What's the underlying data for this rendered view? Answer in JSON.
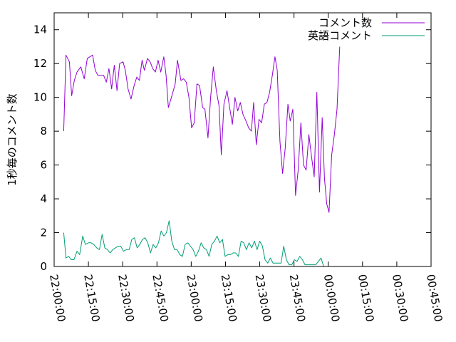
{
  "chart_data": {
    "type": "line",
    "ylabel": "1秒毎のコメント数",
    "xlabel": "",
    "ylim": [
      0,
      15
    ],
    "yticks": [
      0,
      2,
      4,
      6,
      8,
      10,
      12,
      14
    ],
    "xlim": [
      "22:00:00",
      "00:45:00"
    ],
    "xticks": [
      "22:00:00",
      "22:15:00",
      "22:30:00",
      "22:45:00",
      "23:00:00",
      "23:15:00",
      "23:30:00",
      "23:45:00",
      "00:00:00",
      "00:15:00",
      "00:30:00",
      "00:45:00"
    ],
    "grid": false,
    "legend_position": "top-right",
    "series": [
      {
        "name": "コメント数",
        "color": "#9400d3",
        "points": [
          [
            "22:04:10",
            8.0
          ],
          [
            "22:05:10",
            12.5
          ],
          [
            "22:06:40",
            12.1
          ],
          [
            "22:07:40",
            10.1
          ],
          [
            "22:08:50",
            11.0
          ],
          [
            "22:10:00",
            11.5
          ],
          [
            "22:11:40",
            11.8
          ],
          [
            "22:13:10",
            11.1
          ],
          [
            "22:14:30",
            12.3
          ],
          [
            "22:15:40",
            12.4
          ],
          [
            "22:16:50",
            12.5
          ],
          [
            "22:18:00",
            11.6
          ],
          [
            "22:19:10",
            11.3
          ],
          [
            "22:20:30",
            11.3
          ],
          [
            "22:21:40",
            11.3
          ],
          [
            "22:22:50",
            10.9
          ],
          [
            "22:24:00",
            11.7
          ],
          [
            "22:25:10",
            10.5
          ],
          [
            "22:26:20",
            11.9
          ],
          [
            "22:27:30",
            10.4
          ],
          [
            "22:28:40",
            12.0
          ],
          [
            "22:30:10",
            12.1
          ],
          [
            "22:31:10",
            11.6
          ],
          [
            "22:32:20",
            10.5
          ],
          [
            "22:33:40",
            9.9
          ],
          [
            "22:35:00",
            10.7
          ],
          [
            "22:36:10",
            11.2
          ],
          [
            "22:37:20",
            11.0
          ],
          [
            "22:38:30",
            12.2
          ],
          [
            "22:39:30",
            11.6
          ],
          [
            "22:40:50",
            12.3
          ],
          [
            "22:42:00",
            12.1
          ],
          [
            "22:43:10",
            11.7
          ],
          [
            "22:44:20",
            11.5
          ],
          [
            "22:45:30",
            12.2
          ],
          [
            "22:46:40",
            11.5
          ],
          [
            "22:48:00",
            12.4
          ],
          [
            "22:49:00",
            11.3
          ],
          [
            "22:50:00",
            9.4
          ],
          [
            "22:51:20",
            10.0
          ],
          [
            "22:53:00",
            10.8
          ],
          [
            "22:54:00",
            12.2
          ],
          [
            "22:55:30",
            11.0
          ],
          [
            "22:56:40",
            11.1
          ],
          [
            "22:57:50",
            10.9
          ],
          [
            "22:59:00",
            10.0
          ],
          [
            "23:00:10",
            8.2
          ],
          [
            "23:01:20",
            8.5
          ],
          [
            "23:02:30",
            10.8
          ],
          [
            "23:03:40",
            10.7
          ],
          [
            "23:05:00",
            9.4
          ],
          [
            "23:06:00",
            9.3
          ],
          [
            "23:07:20",
            7.6
          ],
          [
            "23:08:30",
            10.0
          ],
          [
            "23:09:40",
            11.8
          ],
          [
            "23:11:00",
            10.4
          ],
          [
            "23:12:10",
            9.5
          ],
          [
            "23:13:10",
            6.6
          ],
          [
            "23:14:20",
            9.6
          ],
          [
            "23:15:40",
            10.4
          ],
          [
            "23:16:50",
            9.4
          ],
          [
            "23:18:00",
            8.4
          ],
          [
            "23:19:10",
            10.0
          ],
          [
            "23:20:20",
            9.2
          ],
          [
            "23:21:30",
            9.7
          ],
          [
            "23:22:40",
            9.0
          ],
          [
            "23:24:00",
            8.6
          ],
          [
            "23:25:10",
            8.2
          ],
          [
            "23:26:20",
            8.0
          ],
          [
            "23:27:20",
            9.7
          ],
          [
            "23:28:30",
            7.2
          ],
          [
            "23:29:40",
            8.7
          ],
          [
            "23:30:50",
            8.5
          ],
          [
            "23:32:00",
            9.6
          ],
          [
            "23:33:10",
            9.7
          ],
          [
            "23:34:20",
            10.3
          ],
          [
            "23:35:30",
            11.3
          ],
          [
            "23:36:40",
            12.4
          ],
          [
            "23:37:40",
            11.6
          ],
          [
            "23:38:50",
            7.4
          ],
          [
            "23:40:00",
            5.5
          ],
          [
            "23:41:10",
            7.0
          ],
          [
            "23:42:20",
            9.6
          ],
          [
            "23:43:20",
            8.6
          ],
          [
            "23:44:30",
            9.3
          ],
          [
            "23:45:40",
            4.2
          ],
          [
            "23:46:50",
            5.7
          ],
          [
            "23:48:00",
            8.5
          ],
          [
            "23:49:10",
            6.0
          ],
          [
            "23:50:20",
            5.7
          ],
          [
            "23:51:30",
            7.8
          ],
          [
            "23:52:40",
            6.5
          ],
          [
            "23:53:50",
            5.3
          ],
          [
            "23:55:00",
            10.3
          ],
          [
            "23:56:10",
            4.4
          ],
          [
            "23:57:20",
            8.8
          ],
          [
            "23:58:20",
            5.2
          ],
          [
            "23:59:20",
            3.7
          ],
          [
            "00:00:20",
            3.2
          ],
          [
            "00:01:30",
            6.6
          ],
          [
            "00:02:40",
            7.8
          ],
          [
            "00:03:50",
            9.3
          ],
          [
            "00:05:00",
            13.0
          ]
        ]
      },
      {
        "name": "英語コメント",
        "color": "#009e73",
        "points": [
          [
            "22:04:10",
            2.0
          ],
          [
            "22:05:10",
            0.5
          ],
          [
            "22:06:20",
            0.6
          ],
          [
            "22:07:30",
            0.4
          ],
          [
            "22:08:40",
            0.4
          ],
          [
            "22:10:00",
            0.9
          ],
          [
            "22:11:10",
            0.7
          ],
          [
            "22:12:30",
            1.8
          ],
          [
            "22:13:40",
            1.3
          ],
          [
            "22:15:00",
            1.4
          ],
          [
            "22:16:10",
            1.4
          ],
          [
            "22:17:20",
            1.3
          ],
          [
            "22:18:40",
            1.1
          ],
          [
            "22:19:50",
            1.0
          ],
          [
            "22:21:00",
            1.9
          ],
          [
            "22:22:10",
            1.1
          ],
          [
            "22:23:20",
            1.0
          ],
          [
            "22:24:30",
            0.8
          ],
          [
            "22:25:40",
            1.0
          ],
          [
            "22:26:50",
            1.1
          ],
          [
            "22:28:00",
            1.2
          ],
          [
            "22:29:10",
            1.2
          ],
          [
            "22:30:20",
            0.9
          ],
          [
            "22:31:40",
            1.0
          ],
          [
            "22:32:50",
            1.0
          ],
          [
            "22:34:00",
            1.6
          ],
          [
            "22:35:10",
            1.7
          ],
          [
            "22:36:20",
            1.1
          ],
          [
            "22:37:30",
            1.3
          ],
          [
            "22:38:40",
            1.6
          ],
          [
            "22:39:50",
            1.7
          ],
          [
            "22:41:00",
            1.4
          ],
          [
            "22:42:10",
            0.8
          ],
          [
            "22:43:20",
            1.3
          ],
          [
            "22:44:30",
            1.1
          ],
          [
            "22:45:40",
            1.4
          ],
          [
            "22:46:50",
            2.1
          ],
          [
            "22:48:00",
            1.8
          ],
          [
            "22:49:10",
            2.0
          ],
          [
            "22:50:20",
            2.7
          ],
          [
            "22:51:30",
            1.5
          ],
          [
            "22:52:40",
            1.0
          ],
          [
            "22:53:50",
            1.0
          ],
          [
            "22:55:00",
            0.7
          ],
          [
            "22:56:10",
            0.6
          ],
          [
            "22:57:20",
            1.3
          ],
          [
            "22:58:30",
            1.4
          ],
          [
            "22:59:40",
            1.2
          ],
          [
            "23:00:50",
            1.0
          ],
          [
            "23:02:00",
            0.6
          ],
          [
            "23:03:10",
            0.9
          ],
          [
            "23:04:20",
            1.4
          ],
          [
            "23:05:30",
            1.1
          ],
          [
            "23:06:40",
            1.0
          ],
          [
            "23:07:50",
            0.6
          ],
          [
            "23:09:00",
            1.3
          ],
          [
            "23:10:10",
            1.5
          ],
          [
            "23:11:20",
            1.8
          ],
          [
            "23:12:30",
            1.4
          ],
          [
            "23:13:40",
            1.6
          ],
          [
            "23:14:50",
            0.6
          ],
          [
            "23:16:00",
            0.7
          ],
          [
            "23:17:10",
            0.7
          ],
          [
            "23:18:20",
            0.8
          ],
          [
            "23:19:30",
            0.8
          ],
          [
            "23:20:40",
            0.6
          ],
          [
            "23:21:50",
            1.5
          ],
          [
            "23:23:00",
            1.4
          ],
          [
            "23:24:10",
            1.0
          ],
          [
            "23:25:20",
            1.4
          ],
          [
            "23:26:30",
            1.1
          ],
          [
            "23:27:40",
            1.5
          ],
          [
            "23:28:50",
            1.0
          ],
          [
            "23:30:00",
            1.5
          ],
          [
            "23:31:10",
            1.2
          ],
          [
            "23:32:20",
            0.4
          ],
          [
            "23:33:30",
            0.2
          ],
          [
            "23:34:40",
            0.5
          ],
          [
            "23:35:50",
            0.2
          ],
          [
            "23:37:00",
            0.2
          ],
          [
            "23:38:10",
            0.2
          ],
          [
            "23:39:20",
            0.2
          ],
          [
            "23:40:30",
            1.2
          ],
          [
            "23:41:40",
            0.4
          ],
          [
            "23:42:50",
            0.1
          ],
          [
            "23:44:00",
            0.1
          ],
          [
            "23:45:10",
            0.4
          ],
          [
            "23:46:20",
            0.3
          ],
          [
            "23:47:30",
            0.6
          ],
          [
            "23:48:40",
            0.4
          ],
          [
            "23:49:50",
            0.1
          ],
          [
            "23:51:00",
            0.1
          ],
          [
            "23:52:10",
            0.1
          ],
          [
            "23:53:20",
            0.1
          ],
          [
            "23:54:30",
            0.1
          ],
          [
            "23:55:40",
            0.3
          ],
          [
            "23:56:50",
            0.5
          ],
          [
            "23:58:00",
            0.0
          ],
          [
            "00:00:20",
            0.0
          ],
          [
            "00:03:30",
            0.0
          ],
          [
            "00:05:00",
            0.0
          ]
        ]
      }
    ]
  }
}
